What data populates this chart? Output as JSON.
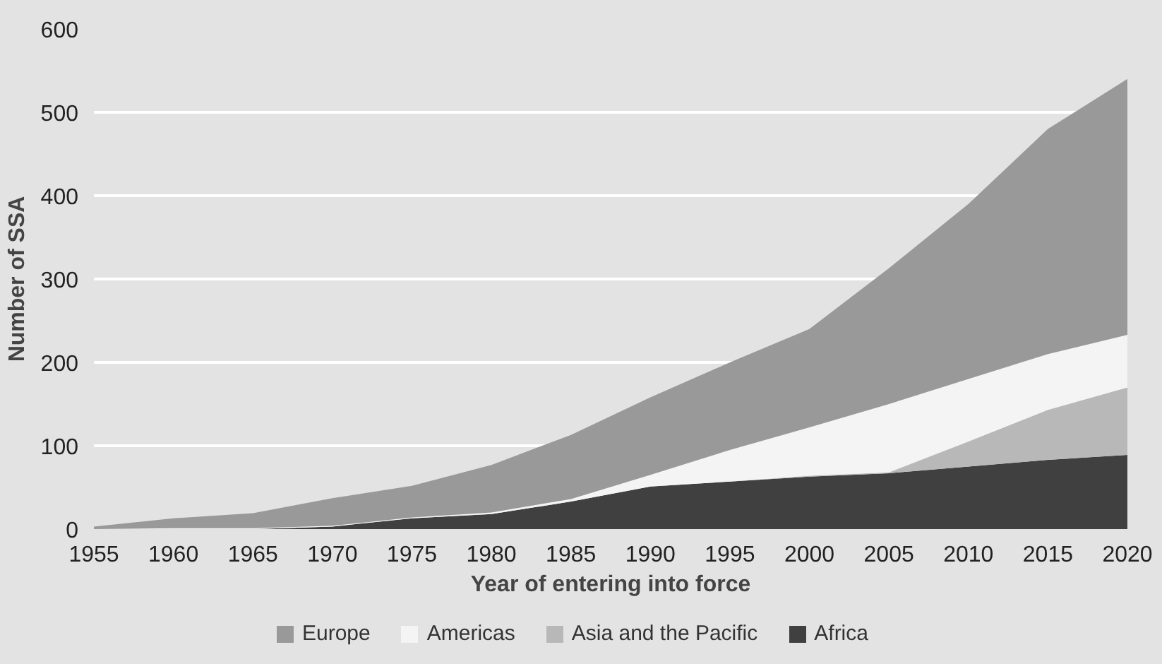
{
  "chart_data": {
    "type": "area",
    "stacked": true,
    "xlabel": "Year of entering into force",
    "ylabel": "Number of SSA",
    "x": [
      1955,
      1960,
      1965,
      1970,
      1975,
      1980,
      1985,
      1990,
      1995,
      2000,
      2005,
      2010,
      2015,
      2020
    ],
    "series": [
      {
        "name": "Africa",
        "color": "#404040",
        "values": [
          0,
          0,
          0,
          3,
          13,
          18,
          33,
          51,
          57,
          63,
          67,
          75,
          83,
          89
        ]
      },
      {
        "name": "Asia and the Pacific",
        "color": "#b8b8b8",
        "values": [
          0,
          0,
          0,
          0,
          0,
          0,
          0,
          0,
          0,
          1,
          1,
          30,
          60,
          81
        ]
      },
      {
        "name": "Americas",
        "color": "#f4f4f4",
        "values": [
          0,
          1,
          1,
          1,
          1,
          2,
          3,
          14,
          38,
          58,
          82,
          75,
          67,
          63
        ]
      },
      {
        "name": "Europe",
        "color": "#999999",
        "values": [
          3,
          12,
          18,
          33,
          38,
          57,
          77,
          93,
          105,
          118,
          163,
          210,
          270,
          307
        ]
      }
    ],
    "xlim": [
      1955,
      2020
    ],
    "ylim": [
      0,
      600
    ],
    "xticks": [
      1955,
      1960,
      1965,
      1970,
      1975,
      1980,
      1985,
      1990,
      1995,
      2000,
      2005,
      2010,
      2015,
      2020
    ],
    "yticks": [
      0,
      100,
      200,
      300,
      400,
      500,
      600
    ],
    "grid": "y",
    "legend": "bottom"
  }
}
